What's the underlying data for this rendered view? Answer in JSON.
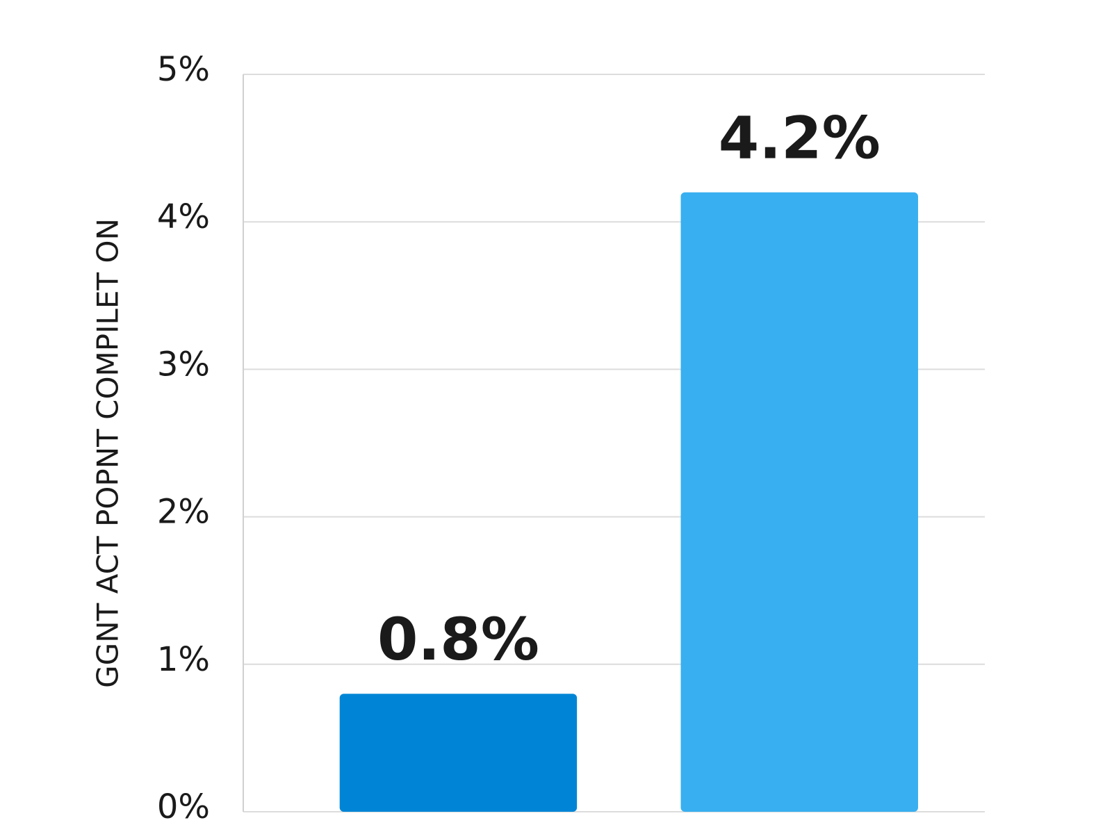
{
  "chart_data": {
    "type": "bar",
    "y_axis_label": "GGNT ACT POPNT COMPILET ON",
    "categories": [
      null,
      null
    ],
    "values": [
      0.8,
      4.2
    ],
    "value_labels": [
      "0.8%",
      "4.2%"
    ],
    "colors": [
      "#0085d6",
      "#38aff0"
    ],
    "ylim": [
      0,
      5
    ],
    "yticks": [
      {
        "value": 0,
        "label": "0%"
      },
      {
        "value": 1,
        "label": "1%"
      },
      {
        "value": 2,
        "label": "2%"
      },
      {
        "value": 3,
        "label": "3%"
      },
      {
        "value": 4,
        "label": "4%"
      },
      {
        "value": 5,
        "label": "5%"
      }
    ],
    "grid": true
  }
}
